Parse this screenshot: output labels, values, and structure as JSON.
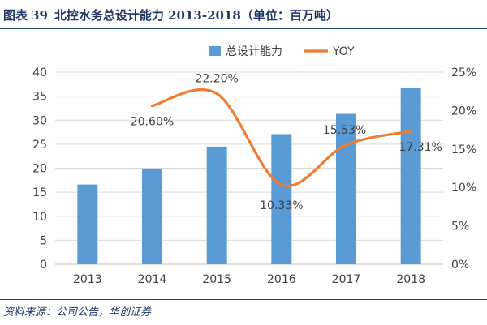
{
  "header": {
    "label": "图表",
    "number": "39",
    "text": "北控水务总设计能力 2013-2018（单位：百万吨）"
  },
  "source": "资料来源：公司公告，华创证券",
  "colors": {
    "bar": "#5b9bd5",
    "line": "#ed7d31",
    "grid": "#d9d9d9",
    "axis": "#bfbfbf",
    "text": "#404040",
    "header": "#1f3864"
  },
  "chart_data": {
    "type": "bar+line",
    "categories": [
      "2013",
      "2014",
      "2015",
      "2016",
      "2017",
      "2018"
    ],
    "series": [
      {
        "name": "总设计能力",
        "type": "bar",
        "axis": "left",
        "values": [
          16.6,
          19.9,
          24.5,
          27.1,
          31.3,
          36.8
        ]
      },
      {
        "name": "YOY",
        "type": "line",
        "axis": "right",
        "values": [
          null,
          20.6,
          22.2,
          10.33,
          15.53,
          17.31
        ]
      }
    ],
    "data_labels": [
      "",
      "20.60%",
      "22.20%",
      "10.33%",
      "15.53%",
      "17.31%"
    ],
    "y_left": {
      "min": 0,
      "max": 40,
      "step": 5,
      "ticks": [
        "0",
        "5",
        "10",
        "15",
        "20",
        "25",
        "30",
        "35",
        "40"
      ]
    },
    "y_right": {
      "min": 0,
      "max": 25,
      "step": 5,
      "ticks": [
        "0%",
        "5%",
        "10%",
        "15%",
        "20%",
        "25%"
      ]
    },
    "legend": [
      "总设计能力",
      "YOY"
    ],
    "legend_position": "top-center",
    "grid": true
  }
}
